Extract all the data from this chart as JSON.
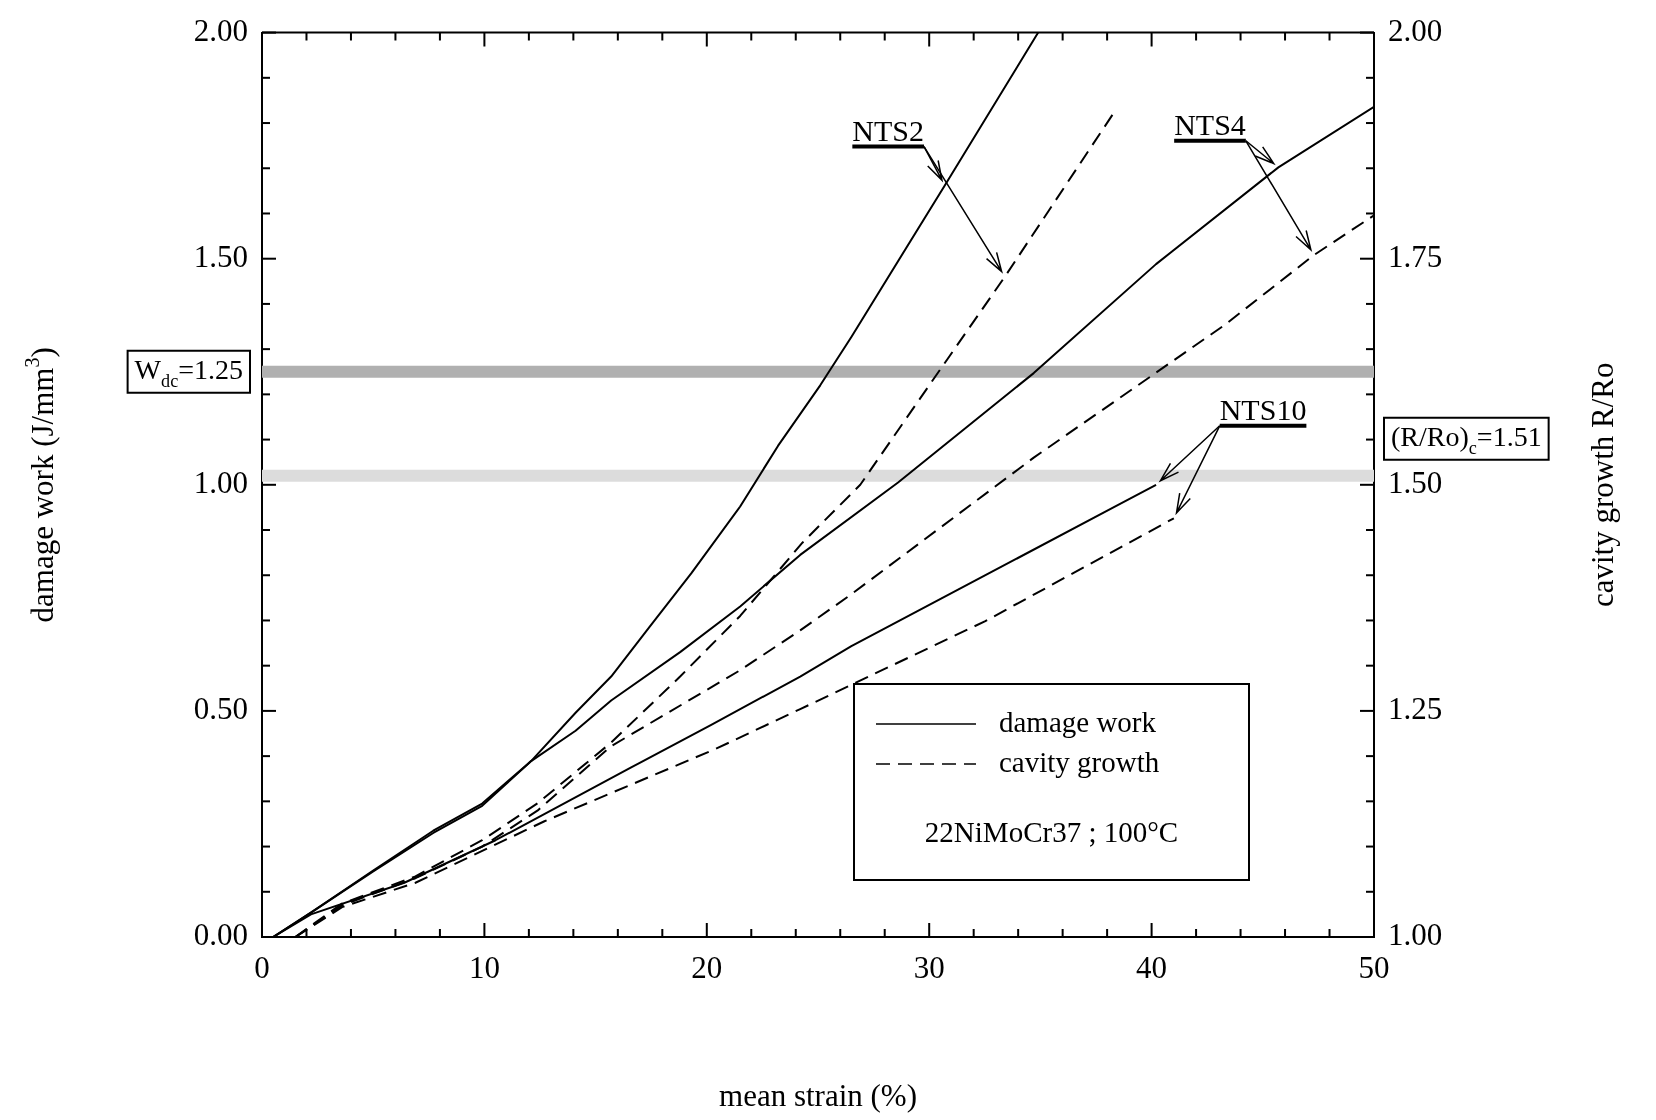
{
  "chart_data": {
    "type": "line",
    "xlabel": "mean strain (%)",
    "ylabel": "damage work (J/mm$^{3}$)",
    "y2label": "cavity growth R/Ro",
    "xlim": [
      0,
      50
    ],
    "xticks": [
      0,
      {
        "value": 2,
        "label": null
      },
      {
        "value": 4,
        "label": null
      },
      {
        "value": 6,
        "label": null
      },
      {
        "value": 8,
        "label": null
      },
      10,
      {
        "value": 12,
        "label": null
      },
      {
        "value": 14,
        "label": null
      },
      {
        "value": 16,
        "label": null
      },
      {
        "value": 18,
        "label": null
      },
      20,
      {
        "value": 22,
        "label": null
      },
      {
        "value": 24,
        "label": null
      },
      {
        "value": 26,
        "label": null
      },
      {
        "value": 28,
        "label": null
      },
      30,
      {
        "value": 32,
        "label": null
      },
      {
        "value": 34,
        "label": null
      },
      {
        "value": 36,
        "label": null
      },
      {
        "value": 38,
        "label": null
      },
      40,
      {
        "value": 42,
        "label": null
      },
      {
        "value": 44,
        "label": null
      },
      {
        "value": 46,
        "label": null
      },
      {
        "value": 48,
        "label": null
      },
      50
    ],
    "ylim": [
      0,
      2
    ],
    "yticks": [
      {
        "value": 0,
        "label": "0.00"
      },
      {
        "value": 0.1,
        "label": null
      },
      {
        "value": 0.2,
        "label": null
      },
      {
        "value": 0.3,
        "label": null
      },
      {
        "value": 0.4,
        "label": null
      },
      {
        "value": 0.5,
        "label": "0.50"
      },
      {
        "value": 0.6,
        "label": null
      },
      {
        "value": 0.7,
        "label": null
      },
      {
        "value": 0.8,
        "label": null
      },
      {
        "value": 0.9,
        "label": null
      },
      {
        "value": 1,
        "label": "1.00"
      },
      {
        "value": 1.1,
        "label": null
      },
      {
        "value": 1.2,
        "label": null
      },
      {
        "value": 1.3,
        "label": null
      },
      {
        "value": 1.4,
        "label": null
      },
      {
        "value": 1.5,
        "label": "1.50"
      },
      {
        "value": 1.6,
        "label": null
      },
      {
        "value": 1.7,
        "label": null
      },
      {
        "value": 1.8,
        "label": null
      },
      {
        "value": 1.9,
        "label": null
      },
      {
        "value": 2,
        "label": "2.00"
      }
    ],
    "y2lim": [
      1,
      2
    ],
    "y2ticks": [
      {
        "value": 1,
        "label": "1.00"
      },
      {
        "value": 1.05,
        "label": null
      },
      {
        "value": 1.1,
        "label": null
      },
      {
        "value": 1.15,
        "label": null
      },
      {
        "value": 1.2,
        "label": null
      },
      {
        "value": 1.25,
        "label": "1.25"
      },
      {
        "value": 1.3,
        "label": null
      },
      {
        "value": 1.35,
        "label": null
      },
      {
        "value": 1.4,
        "label": null
      },
      {
        "value": 1.45,
        "label": null
      },
      {
        "value": 1.5,
        "label": "1.50"
      },
      {
        "value": 1.55,
        "label": null
      },
      {
        "value": 1.6,
        "label": null
      },
      {
        "value": 1.65,
        "label": null
      },
      {
        "value": 1.7,
        "label": null
      },
      {
        "value": 1.75,
        "label": "1.75"
      },
      {
        "value": 1.8,
        "label": null
      },
      {
        "value": 1.85,
        "label": null
      },
      {
        "value": 1.9,
        "label": null
      },
      {
        "value": 1.95,
        "label": null
      },
      {
        "value": 2,
        "label": "2.00"
      }
    ],
    "grid": false,
    "marker": "none",
    "series": [
      {
        "name": "NTS2",
        "color": "#000000",
        "line_style": "solid",
        "x": [
          0.5,
          2.2,
          5,
          7.7,
          9.9,
          12.1,
          14.1,
          15.7,
          17.4,
          19.3,
          21.5,
          23.2,
          25.1,
          26.5,
          30.7,
          34.9
        ],
        "values": [
          0,
          0.054,
          0.147,
          0.235,
          0.295,
          0.389,
          0.496,
          0.576,
          0.684,
          0.804,
          0.952,
          1.086,
          1.22,
          1.327,
          1.662,
          2
        ]
      },
      {
        "color": "#000000",
        "line_style": "dashed",
        "axis": "y2",
        "x": [
          1.5,
          3.6,
          6.9,
          9.9,
          12.4,
          15.7,
          18.8,
          21.5,
          24.3,
          26.9,
          30,
          33.4,
          38.4
        ],
        "values": [
          1,
          1.037,
          1.067,
          1.107,
          1.148,
          1.215,
          1.288,
          1.355,
          1.436,
          1.5,
          1.61,
          1.73,
          1.915
        ]
      },
      {
        "name": "NTS4",
        "color": "#000000",
        "line_style": "solid",
        "x": [
          0.5,
          2.2,
          5,
          7.7,
          9.9,
          12.1,
          14.1,
          15.7,
          18.8,
          21.5,
          24.2,
          28.6,
          34.7,
          40.2,
          45.7,
          50
        ],
        "values": [
          0,
          0.054,
          0.145,
          0.23,
          0.29,
          0.389,
          0.456,
          0.523,
          0.63,
          0.731,
          0.845,
          1.005,
          1.247,
          1.488,
          1.702,
          1.836
        ]
      },
      {
        "color": "#000000",
        "line_style": "dashed",
        "axis": "y2",
        "x": [
          1.5,
          3.6,
          6.9,
          9.9,
          12.4,
          15.7,
          21.5,
          24.2,
          26.5,
          34.7,
          43.3,
          47.3,
          50
        ],
        "values": [
          1,
          1.035,
          1.065,
          1.1,
          1.14,
          1.211,
          1.295,
          1.339,
          1.379,
          1.53,
          1.677,
          1.754,
          1.798
        ]
      },
      {
        "name": "NTS10",
        "color": "#000000",
        "line_style": "solid",
        "x": [
          0.5,
          2.2,
          6.4,
          10.5,
          16.6,
          20.2,
          24.2,
          26.5,
          40.2
        ],
        "values": [
          0,
          0.05,
          0.12,
          0.214,
          0.375,
          0.469,
          0.576,
          0.643,
          1
        ]
      },
      {
        "color": "#000000",
        "line_style": "dashed",
        "axis": "y2",
        "x": [
          1.5,
          3.6,
          6.9,
          12.7,
          20.4,
          24.2,
          32.5,
          41
        ],
        "values": [
          1,
          1.033,
          1.06,
          1.128,
          1.208,
          1.252,
          1.349,
          1.463
        ]
      }
    ],
    "ref_lines": [
      {
        "axis": "y",
        "value": 1.25,
        "label": "W$_{dc}$=1.25",
        "color": "#b0b0b0"
      },
      {
        "axis": "y2",
        "value": 1.51,
        "label": "(R/Ro)$_{c}$=1.51",
        "color": "#dcdcdc"
      }
    ],
    "annotations": [
      "damage work",
      "cavity growth",
      "22NiMoCr37 ; 100°C"
    ]
  }
}
